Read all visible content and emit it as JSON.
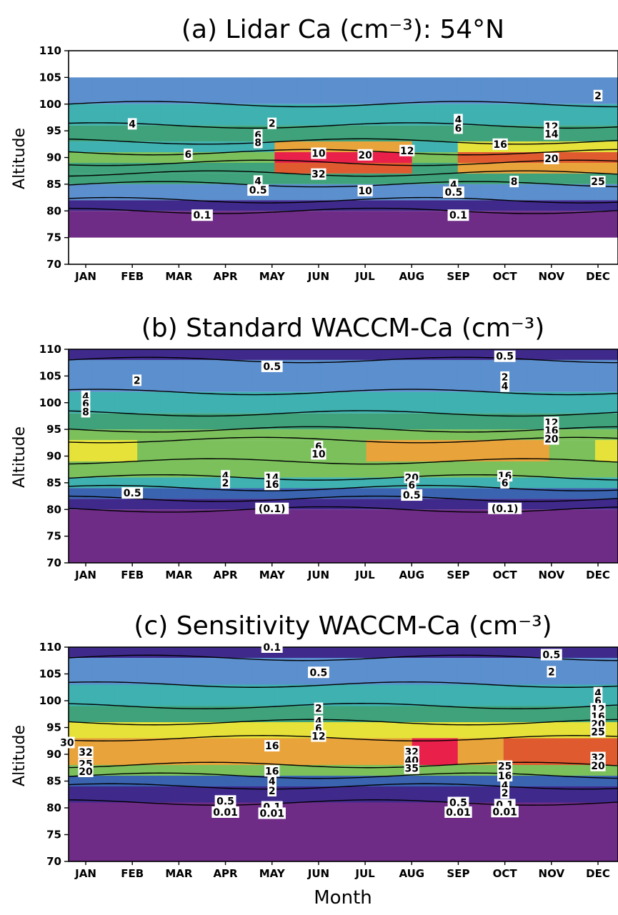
{
  "figure": {
    "xlabel": "Month",
    "ylabel": "Altitude"
  },
  "colors": {
    "level_colors": [
      "#6e2c86",
      "#3f2a8c",
      "#3a63b0",
      "#5b8fcd",
      "#3fb1b0",
      "#3fa27a",
      "#7cc05c",
      "#e6e23a",
      "#e8a33a",
      "#e05a2f",
      "#e8204a",
      "#e0185e"
    ],
    "contour_line": "#000000",
    "background": "#ffffff"
  },
  "chart_data": [
    {
      "type": "contour",
      "title": "(a) Lidar Ca (cm⁻³): 54°N",
      "xlabel": "",
      "ylabel": "Altitude",
      "x_ticks": [
        "JAN",
        "FEB",
        "MAR",
        "APR",
        "MAY",
        "JUN",
        "JUL",
        "AUG",
        "SEP",
        "OCT",
        "NOV",
        "DEC"
      ],
      "ylim": [
        70,
        110
      ],
      "y_ticks": [
        70,
        75,
        80,
        85,
        90,
        95,
        100,
        105,
        110
      ],
      "data_altitude_range": [
        75,
        105
      ],
      "levels": [
        0.1,
        0.5,
        2,
        4,
        6,
        8,
        10,
        12,
        14,
        16,
        20,
        25,
        32
      ],
      "contour_labels": [
        {
          "text": "4",
          "month": 2.0,
          "alt": 96.3
        },
        {
          "text": "2",
          "month": 5.0,
          "alt": 96.4
        },
        {
          "text": "6",
          "month": 3.2,
          "alt": 90.6
        },
        {
          "text": "6",
          "month": 4.7,
          "alt": 94.2
        },
        {
          "text": "8",
          "month": 4.7,
          "alt": 92.8
        },
        {
          "text": "10",
          "month": 6.0,
          "alt": 90.8
        },
        {
          "text": "20",
          "month": 7.0,
          "alt": 90.5
        },
        {
          "text": "12",
          "month": 7.9,
          "alt": 91.3
        },
        {
          "text": "32",
          "month": 6.0,
          "alt": 86.9
        },
        {
          "text": "4",
          "month": 4.7,
          "alt": 85.6
        },
        {
          "text": "0.5",
          "month": 4.7,
          "alt": 83.9
        },
        {
          "text": "10",
          "month": 7.0,
          "alt": 83.8
        },
        {
          "text": "4",
          "month": 9.0,
          "alt": 97.1
        },
        {
          "text": "6",
          "month": 9.0,
          "alt": 95.5
        },
        {
          "text": "4",
          "month": 8.9,
          "alt": 84.9
        },
        {
          "text": "0.5",
          "month": 8.9,
          "alt": 83.5
        },
        {
          "text": "16",
          "month": 9.9,
          "alt": 92.5
        },
        {
          "text": "8",
          "month": 10.2,
          "alt": 85.5
        },
        {
          "text": "12",
          "month": 11.0,
          "alt": 95.8
        },
        {
          "text": "14",
          "month": 11.0,
          "alt": 94.4
        },
        {
          "text": "20",
          "month": 11.0,
          "alt": 89.8
        },
        {
          "text": "25",
          "month": 12.0,
          "alt": 85.5
        },
        {
          "text": "2",
          "month": 12.0,
          "alt": 101.6
        },
        {
          "text": "0.1",
          "month": 3.5,
          "alt": 79.2
        },
        {
          "text": "0.1",
          "month": 9.0,
          "alt": 79.2
        }
      ]
    },
    {
      "type": "contour",
      "title": "(b) Standard WACCM-Ca (cm⁻³)",
      "xlabel": "",
      "ylabel": "Altitude",
      "x_ticks": [
        "JAN",
        "FEB",
        "MAR",
        "APR",
        "MAY",
        "JUN",
        "JUL",
        "AUG",
        "SEP",
        "OCT",
        "NOV",
        "DEC"
      ],
      "ylim": [
        70,
        110
      ],
      "y_ticks": [
        70,
        75,
        80,
        85,
        90,
        95,
        100,
        105,
        110
      ],
      "data_altitude_range": [
        70,
        110
      ],
      "levels": [
        0.1,
        0.5,
        2,
        4,
        6,
        8,
        10,
        12,
        14,
        16,
        20
      ],
      "contour_labels": [
        {
          "text": "0.5",
          "month": 5.0,
          "alt": 106.8
        },
        {
          "text": "0.5",
          "month": 10.0,
          "alt": 108.7
        },
        {
          "text": "2",
          "month": 2.1,
          "alt": 104.2
        },
        {
          "text": "2",
          "month": 10.0,
          "alt": 104.8
        },
        {
          "text": "4",
          "month": 10.0,
          "alt": 103.1
        },
        {
          "text": "4",
          "month": 1.0,
          "alt": 101.2
        },
        {
          "text": "6",
          "month": 1.0,
          "alt": 99.8
        },
        {
          "text": "8",
          "month": 1.0,
          "alt": 98.3
        },
        {
          "text": "6",
          "month": 6.0,
          "alt": 91.8
        },
        {
          "text": "10",
          "month": 6.0,
          "alt": 90.4
        },
        {
          "text": "12",
          "month": 11.0,
          "alt": 96.3
        },
        {
          "text": "16",
          "month": 11.0,
          "alt": 94.8
        },
        {
          "text": "20",
          "month": 11.0,
          "alt": 93.2
        },
        {
          "text": "4",
          "month": 4.0,
          "alt": 86.3
        },
        {
          "text": "2",
          "month": 4.0,
          "alt": 85.0
        },
        {
          "text": "14",
          "month": 5.0,
          "alt": 86.0
        },
        {
          "text": "16",
          "month": 5.0,
          "alt": 84.7
        },
        {
          "text": "20",
          "month": 8.0,
          "alt": 86.0
        },
        {
          "text": "6",
          "month": 8.0,
          "alt": 84.6
        },
        {
          "text": "0.5",
          "month": 8.0,
          "alt": 82.7
        },
        {
          "text": "16",
          "month": 10.0,
          "alt": 86.3
        },
        {
          "text": "6",
          "month": 10.0,
          "alt": 85.0
        },
        {
          "text": "0.5",
          "month": 2.0,
          "alt": 83.1
        },
        {
          "text": "(0.1)",
          "month": 5.0,
          "alt": 80.2
        },
        {
          "text": "(0.1)",
          "month": 10.0,
          "alt": 80.2
        }
      ]
    },
    {
      "type": "contour",
      "title": "(c) Sensitivity WACCM-Ca (cm⁻³)",
      "xlabel": "Month",
      "ylabel": "Altitude",
      "x_ticks": [
        "JAN",
        "FEB",
        "MAR",
        "APR",
        "MAY",
        "JUN",
        "JUL",
        "AUG",
        "SEP",
        "OCT",
        "NOV",
        "DEC"
      ],
      "ylim": [
        70,
        110
      ],
      "y_ticks": [
        70,
        75,
        80,
        85,
        90,
        95,
        100,
        105,
        110
      ],
      "data_altitude_range": [
        70,
        110
      ],
      "levels": [
        0.01,
        0.1,
        0.5,
        2,
        4,
        6,
        8,
        12,
        16,
        20,
        25,
        30,
        32,
        35,
        40
      ],
      "contour_labels": [
        {
          "text": "0.1",
          "month": 5.0,
          "alt": 110.0
        },
        {
          "text": "0.5",
          "month": 6.0,
          "alt": 105.3
        },
        {
          "text": "0.5",
          "month": 11.0,
          "alt": 108.6
        },
        {
          "text": "2",
          "month": 11.0,
          "alt": 105.4
        },
        {
          "text": "2",
          "month": 6.0,
          "alt": 98.6
        },
        {
          "text": "4",
          "month": 6.0,
          "alt": 96.2
        },
        {
          "text": "6",
          "month": 6.0,
          "alt": 94.9
        },
        {
          "text": "12",
          "month": 6.0,
          "alt": 93.4
        },
        {
          "text": "16",
          "month": 5.0,
          "alt": 91.6
        },
        {
          "text": "4",
          "month": 12.0,
          "alt": 101.5
        },
        {
          "text": "6",
          "month": 12.0,
          "alt": 100.0
        },
        {
          "text": "12",
          "month": 12.0,
          "alt": 98.5
        },
        {
          "text": "16",
          "month": 12.0,
          "alt": 97.1
        },
        {
          "text": "20",
          "month": 12.0,
          "alt": 95.7
        },
        {
          "text": "25",
          "month": 12.0,
          "alt": 94.2
        },
        {
          "text": "32",
          "month": 12.0,
          "alt": 89.4
        },
        {
          "text": "20",
          "month": 12.0,
          "alt": 87.9
        },
        {
          "text": "30",
          "month": 0.6,
          "alt": 92.2
        },
        {
          "text": "32",
          "month": 1.0,
          "alt": 90.4
        },
        {
          "text": "25",
          "month": 1.0,
          "alt": 88.2
        },
        {
          "text": "20",
          "month": 1.0,
          "alt": 86.8
        },
        {
          "text": "32",
          "month": 8.0,
          "alt": 90.5
        },
        {
          "text": "40",
          "month": 8.0,
          "alt": 88.9
        },
        {
          "text": "35",
          "month": 8.0,
          "alt": 87.4
        },
        {
          "text": "16",
          "month": 5.0,
          "alt": 86.9
        },
        {
          "text": "4",
          "month": 5.0,
          "alt": 85.0
        },
        {
          "text": "2",
          "month": 5.0,
          "alt": 83.2
        },
        {
          "text": "25",
          "month": 10.0,
          "alt": 87.8
        },
        {
          "text": "16",
          "month": 10.0,
          "alt": 86.0
        },
        {
          "text": "4",
          "month": 10.0,
          "alt": 84.2
        },
        {
          "text": "2",
          "month": 10.0,
          "alt": 82.8
        },
        {
          "text": "0.5",
          "month": 4.0,
          "alt": 81.3
        },
        {
          "text": "0.01",
          "month": 4.0,
          "alt": 79.2
        },
        {
          "text": "0.1",
          "month": 5.0,
          "alt": 80.2
        },
        {
          "text": "0.01",
          "month": 5.0,
          "alt": 79.0
        },
        {
          "text": "0.5",
          "month": 9.0,
          "alt": 81.0
        },
        {
          "text": "0.01",
          "month": 9.0,
          "alt": 79.2
        },
        {
          "text": "0.1",
          "month": 10.0,
          "alt": 80.6
        },
        {
          "text": "0.01",
          "month": 10.0,
          "alt": 79.3
        }
      ]
    }
  ]
}
